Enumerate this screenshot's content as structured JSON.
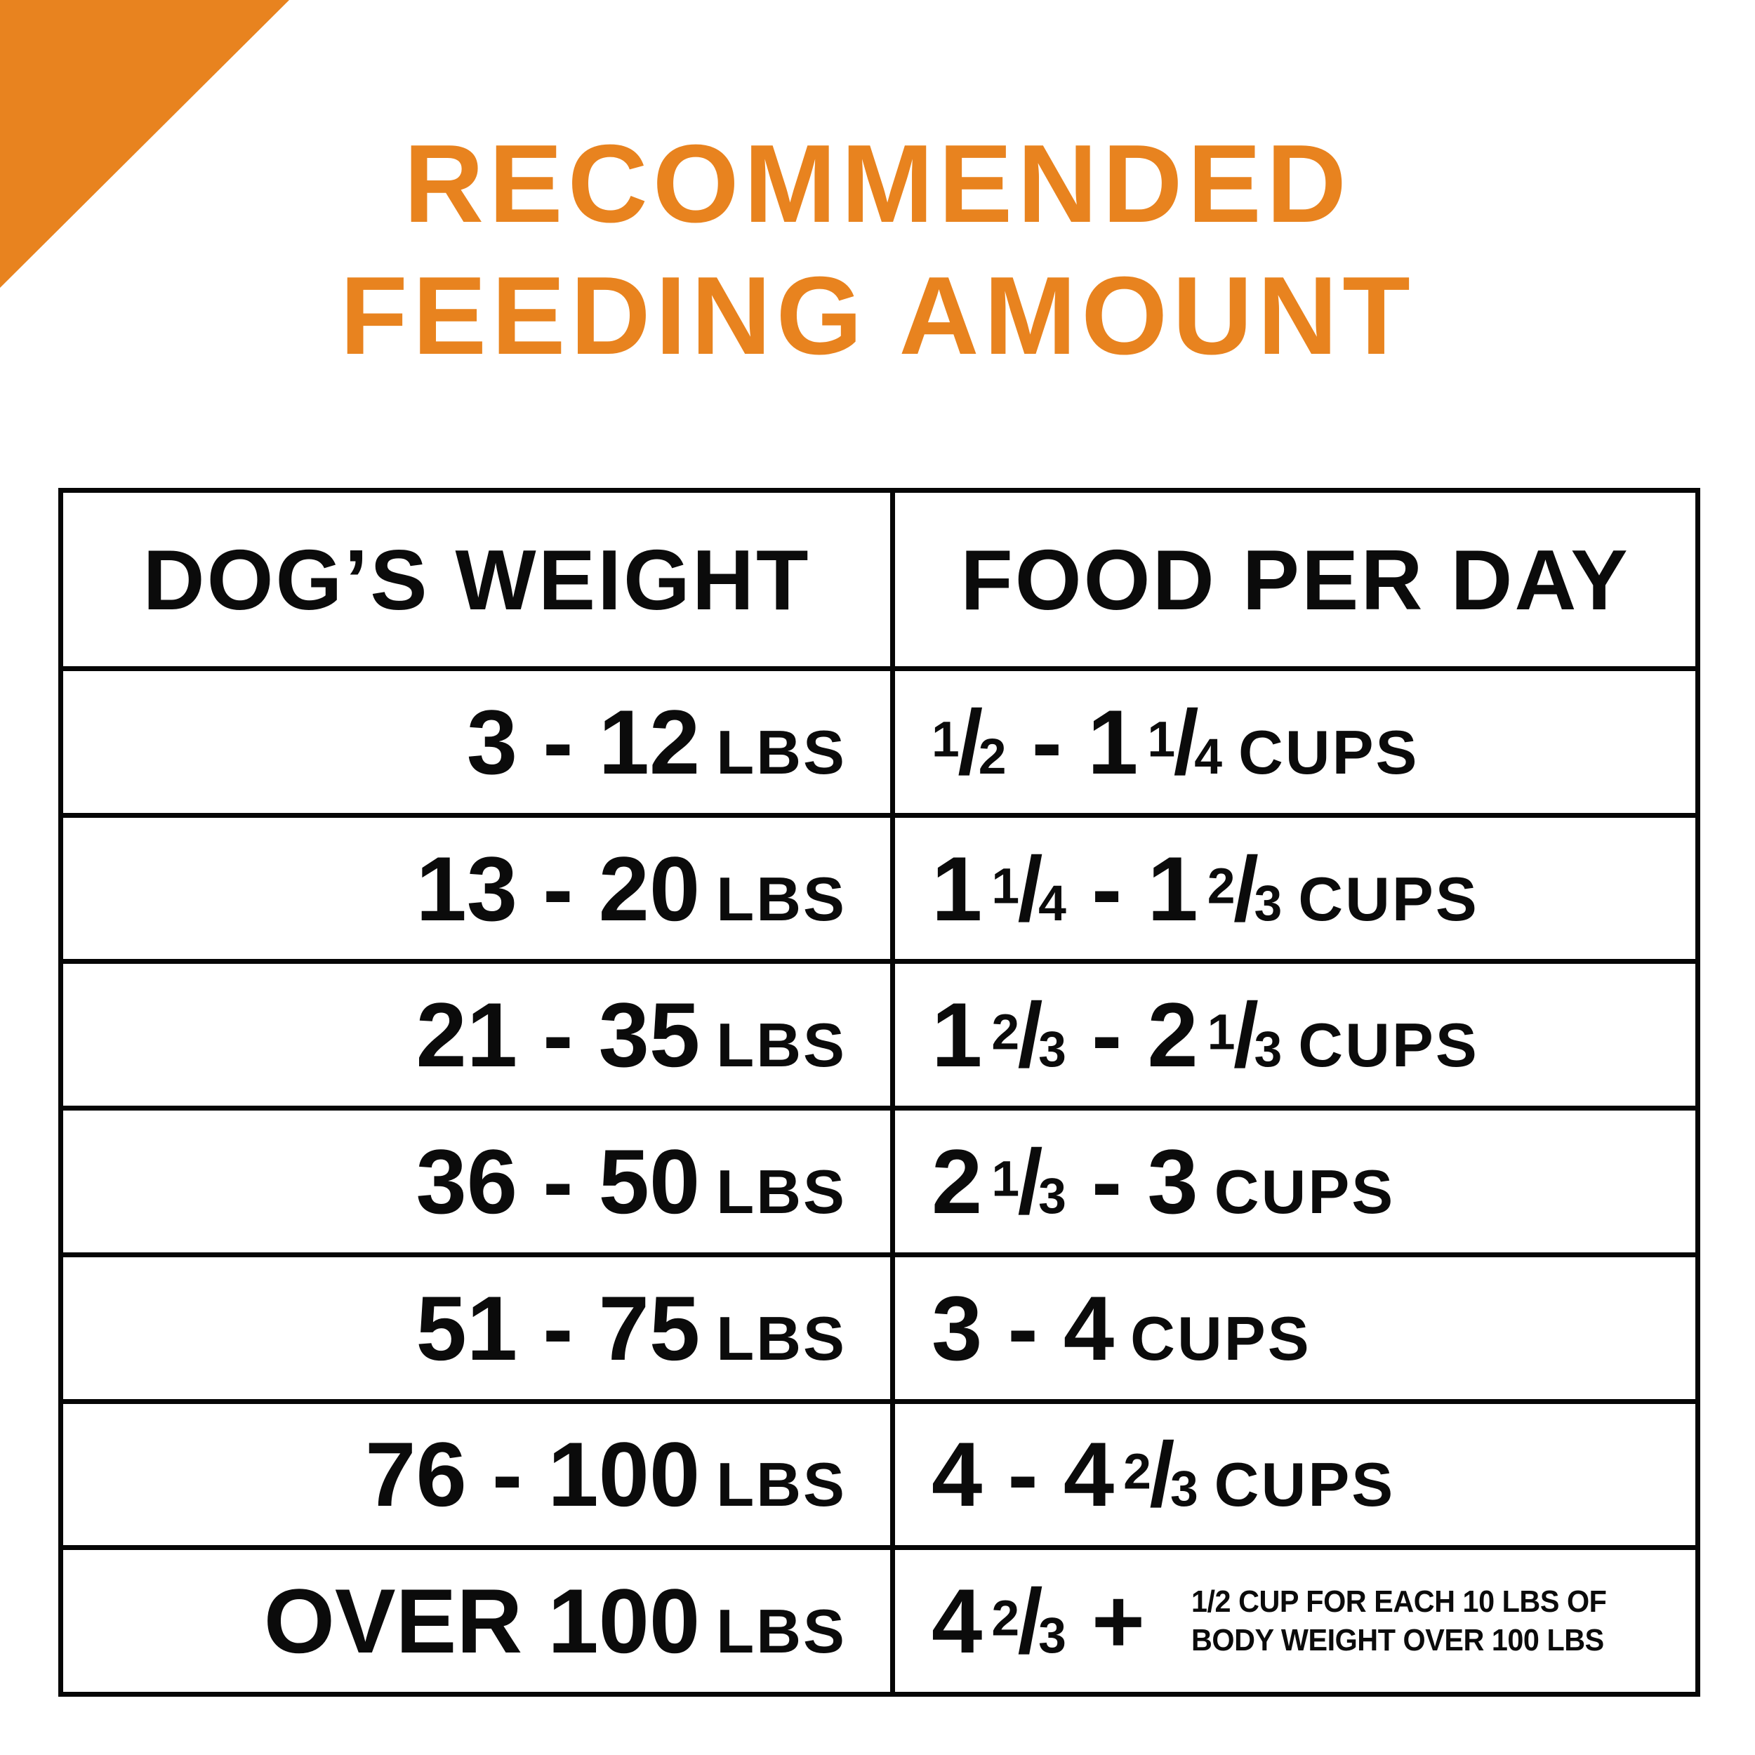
{
  "colors": {
    "accent_orange": "#E8831F",
    "text_black": "#0B0B0B",
    "border_black": "#060606",
    "background": "#FFFFFF"
  },
  "decor": {
    "corner_triangle": "orange-corner-triangle"
  },
  "title": {
    "line1": "RECOMMENDED",
    "line2": "FEEDING AMOUNT"
  },
  "table": {
    "headers": [
      {
        "label": "DOG’S WEIGHT"
      },
      {
        "label": "FOOD PER DAY"
      }
    ],
    "rows": [
      {
        "weight": {
          "range": "3 - 12",
          "unit": "LBS"
        },
        "food": {
          "segments": [
            {
              "frac": [
                "1",
                "2"
              ]
            },
            {
              "text": " - "
            },
            {
              "text": "1"
            },
            {
              "frac": [
                "1",
                "4"
              ]
            }
          ],
          "unit": "CUPS",
          "note": null
        }
      },
      {
        "weight": {
          "range": "13 - 20",
          "unit": "LBS"
        },
        "food": {
          "segments": [
            {
              "text": "1"
            },
            {
              "frac": [
                "1",
                "4"
              ]
            },
            {
              "text": " - "
            },
            {
              "text": "1"
            },
            {
              "frac": [
                "2",
                "3"
              ]
            }
          ],
          "unit": "CUPS",
          "note": null
        }
      },
      {
        "weight": {
          "range": "21 - 35",
          "unit": "LBS"
        },
        "food": {
          "segments": [
            {
              "text": "1"
            },
            {
              "frac": [
                "2",
                "3"
              ]
            },
            {
              "text": " - "
            },
            {
              "text": "2"
            },
            {
              "frac": [
                "1",
                "3"
              ]
            }
          ],
          "unit": "CUPS",
          "note": null
        }
      },
      {
        "weight": {
          "range": "36 - 50",
          "unit": "LBS"
        },
        "food": {
          "segments": [
            {
              "text": "2"
            },
            {
              "frac": [
                "1",
                "3"
              ]
            },
            {
              "text": " - "
            },
            {
              "text": "3"
            }
          ],
          "unit": "CUPS",
          "note": null
        }
      },
      {
        "weight": {
          "range": "51 - 75",
          "unit": "LBS"
        },
        "food": {
          "segments": [
            {
              "text": "3 - 4"
            }
          ],
          "unit": "CUPS",
          "note": null
        }
      },
      {
        "weight": {
          "range": "76 - 100",
          "unit": "LBS"
        },
        "food": {
          "segments": [
            {
              "text": "4 - 4"
            },
            {
              "frac": [
                "2",
                "3"
              ]
            }
          ],
          "unit": "CUPS",
          "note": null
        }
      },
      {
        "weight": {
          "range": "OVER 100",
          "unit": "LBS"
        },
        "food": {
          "segments": [
            {
              "text": "4"
            },
            {
              "frac": [
                "2",
                "3"
              ]
            },
            {
              "text": " +"
            }
          ],
          "unit": null,
          "note": {
            "line1": "1/2 CUP FOR EACH 10 LBS OF",
            "line2": "BODY WEIGHT OVER 100 LBS"
          }
        }
      }
    ]
  },
  "chart_data": {
    "type": "table",
    "title": "RECOMMENDED FEEDING AMOUNT",
    "columns": [
      "DOG’S WEIGHT",
      "FOOD PER DAY"
    ],
    "rows": [
      [
        "3 - 12 LBS",
        "1/2 - 1 1/4 CUPS"
      ],
      [
        "13 - 20 LBS",
        "1 1/4 - 1 2/3 CUPS"
      ],
      [
        "21 - 35 LBS",
        "1 2/3 - 2 1/3 CUPS"
      ],
      [
        "36 - 50 LBS",
        "2 1/3 - 3 CUPS"
      ],
      [
        "51 - 75 LBS",
        "3 - 4 CUPS"
      ],
      [
        "76 - 100 LBS",
        "4 - 4 2/3 CUPS"
      ],
      [
        "OVER 100 LBS",
        "4 2/3 + 1/2 CUP FOR EACH 10 LBS OF BODY WEIGHT OVER 100 LBS"
      ]
    ]
  }
}
